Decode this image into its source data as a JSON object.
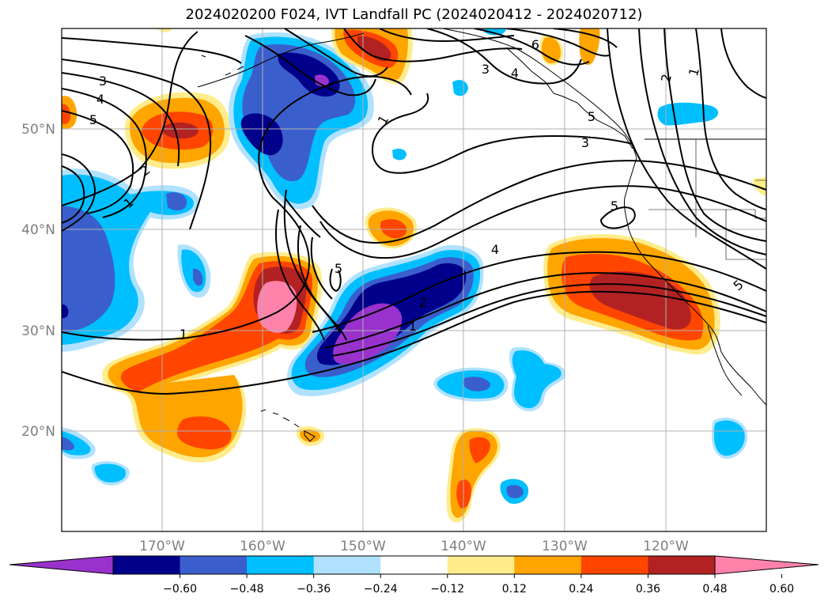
{
  "title": "2024020200 F024, IVT Landfall PC (2024020412 - 2024020712)",
  "lat_labels": [
    "50°N",
    "40°N",
    "30°N",
    "20°N"
  ],
  "lon_labels": [
    "170°W",
    "160°W",
    "150°W",
    "140°W",
    "130°W",
    "120°W"
  ],
  "colorbar": {
    "ticks": [
      "−0.60",
      "−0.48",
      "−0.36",
      "−0.24",
      "−0.12",
      "0.12",
      "0.24",
      "0.36",
      "0.48",
      "0.60"
    ],
    "colors": [
      "#9932cc",
      "#00008b",
      "#3a5fcd",
      "#00bfff",
      "#b0e2ff",
      "#ffffff",
      "#ffec8b",
      "#ffa500",
      "#ff4500",
      "#b22222",
      "#ff82ab"
    ]
  },
  "contour_labels": [
    "3",
    "4",
    "5",
    "2",
    "1",
    "1",
    "1",
    "5",
    "3",
    "4",
    "6",
    "3",
    "5",
    "4",
    "2",
    "1",
    "1",
    "2",
    "5",
    "5"
  ],
  "colors": {
    "purple": "#9932cc",
    "navy": "#00008b",
    "blue": "#3a5fcd",
    "cyan": "#00bfff",
    "lightblue": "#b0e2ff",
    "yellow": "#ffec8b",
    "orange": "#ffa500",
    "redorange": "#ff4500",
    "darkred": "#b22222",
    "pink": "#ff82ab",
    "grid": "#b0b0b0",
    "contour": "#000000"
  }
}
